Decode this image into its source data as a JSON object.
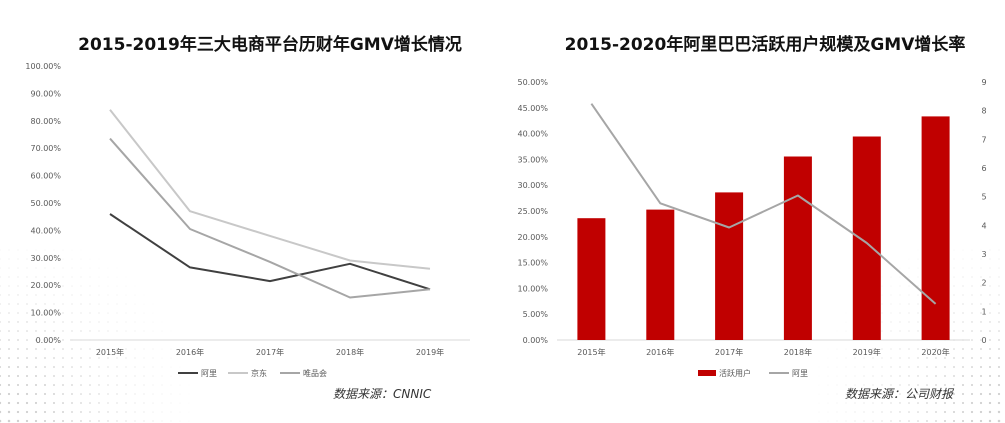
{
  "left_chart": {
    "title": "2015-2019年三大电商平台历财年GMV增长情况",
    "source": "数据来源：CNNIC"
  },
  "right_chart": {
    "title": "2015-2020年阿里巴巴活跃用户规模及GMV增长率",
    "source": "数据来源：公司财报"
  },
  "colors": {
    "ali_left": "#404040",
    "jd": "#c8c8c8",
    "vip": "#a6a6a6",
    "active_users_bar": "#c00000",
    "ali_right": "#a6a6a6",
    "axis": "#d9d9d9"
  },
  "chart_data": [
    {
      "type": "line",
      "categories": [
        "2015年",
        "2016年",
        "2017年",
        "2018年",
        "2019年"
      ],
      "y_ticks": [
        "0.00%",
        "10.00%",
        "20.00%",
        "30.00%",
        "40.00%",
        "50.00%",
        "60.00%",
        "70.00%",
        "80.00%",
        "90.00%",
        "100.00%"
      ],
      "ylim": [
        0,
        100
      ],
      "series": [
        {
          "name": "阿里",
          "values": [
            46,
            26.5,
            21.5,
            27.8,
            18.5
          ]
        },
        {
          "name": "京东",
          "values": [
            84,
            47,
            38,
            29,
            26
          ]
        },
        {
          "name": "唯品会",
          "values": [
            73.5,
            40.5,
            28.5,
            15.5,
            18.5
          ]
        }
      ],
      "legend": "bottom",
      "grid": false
    },
    {
      "type": "bar",
      "categories": [
        "2015年",
        "2016年",
        "2017年",
        "2018年",
        "2019年",
        "2020年"
      ],
      "y_ticks_left": [
        "0.00%",
        "5.00%",
        "10.00%",
        "15.00%",
        "20.00%",
        "25.00%",
        "30.00%",
        "35.00%",
        "40.00%",
        "45.00%",
        "50.00%"
      ],
      "y_ticks_right": [
        "0",
        "1",
        "2",
        "3",
        "4",
        "5",
        "6",
        "7",
        "8",
        "9"
      ],
      "ylim_left": [
        0,
        50
      ],
      "ylim_right": [
        0,
        9
      ],
      "series": [
        {
          "name": "活跃用户",
          "type": "bar",
          "axis": "right",
          "values": [
            4.25,
            4.55,
            5.15,
            6.4,
            7.1,
            7.8
          ]
        },
        {
          "name": "阿里",
          "type": "line",
          "axis": "left",
          "values": [
            45.8,
            26.5,
            21.8,
            28,
            18.8,
            7
          ]
        }
      ],
      "legend": "bottom",
      "grid": false
    }
  ]
}
